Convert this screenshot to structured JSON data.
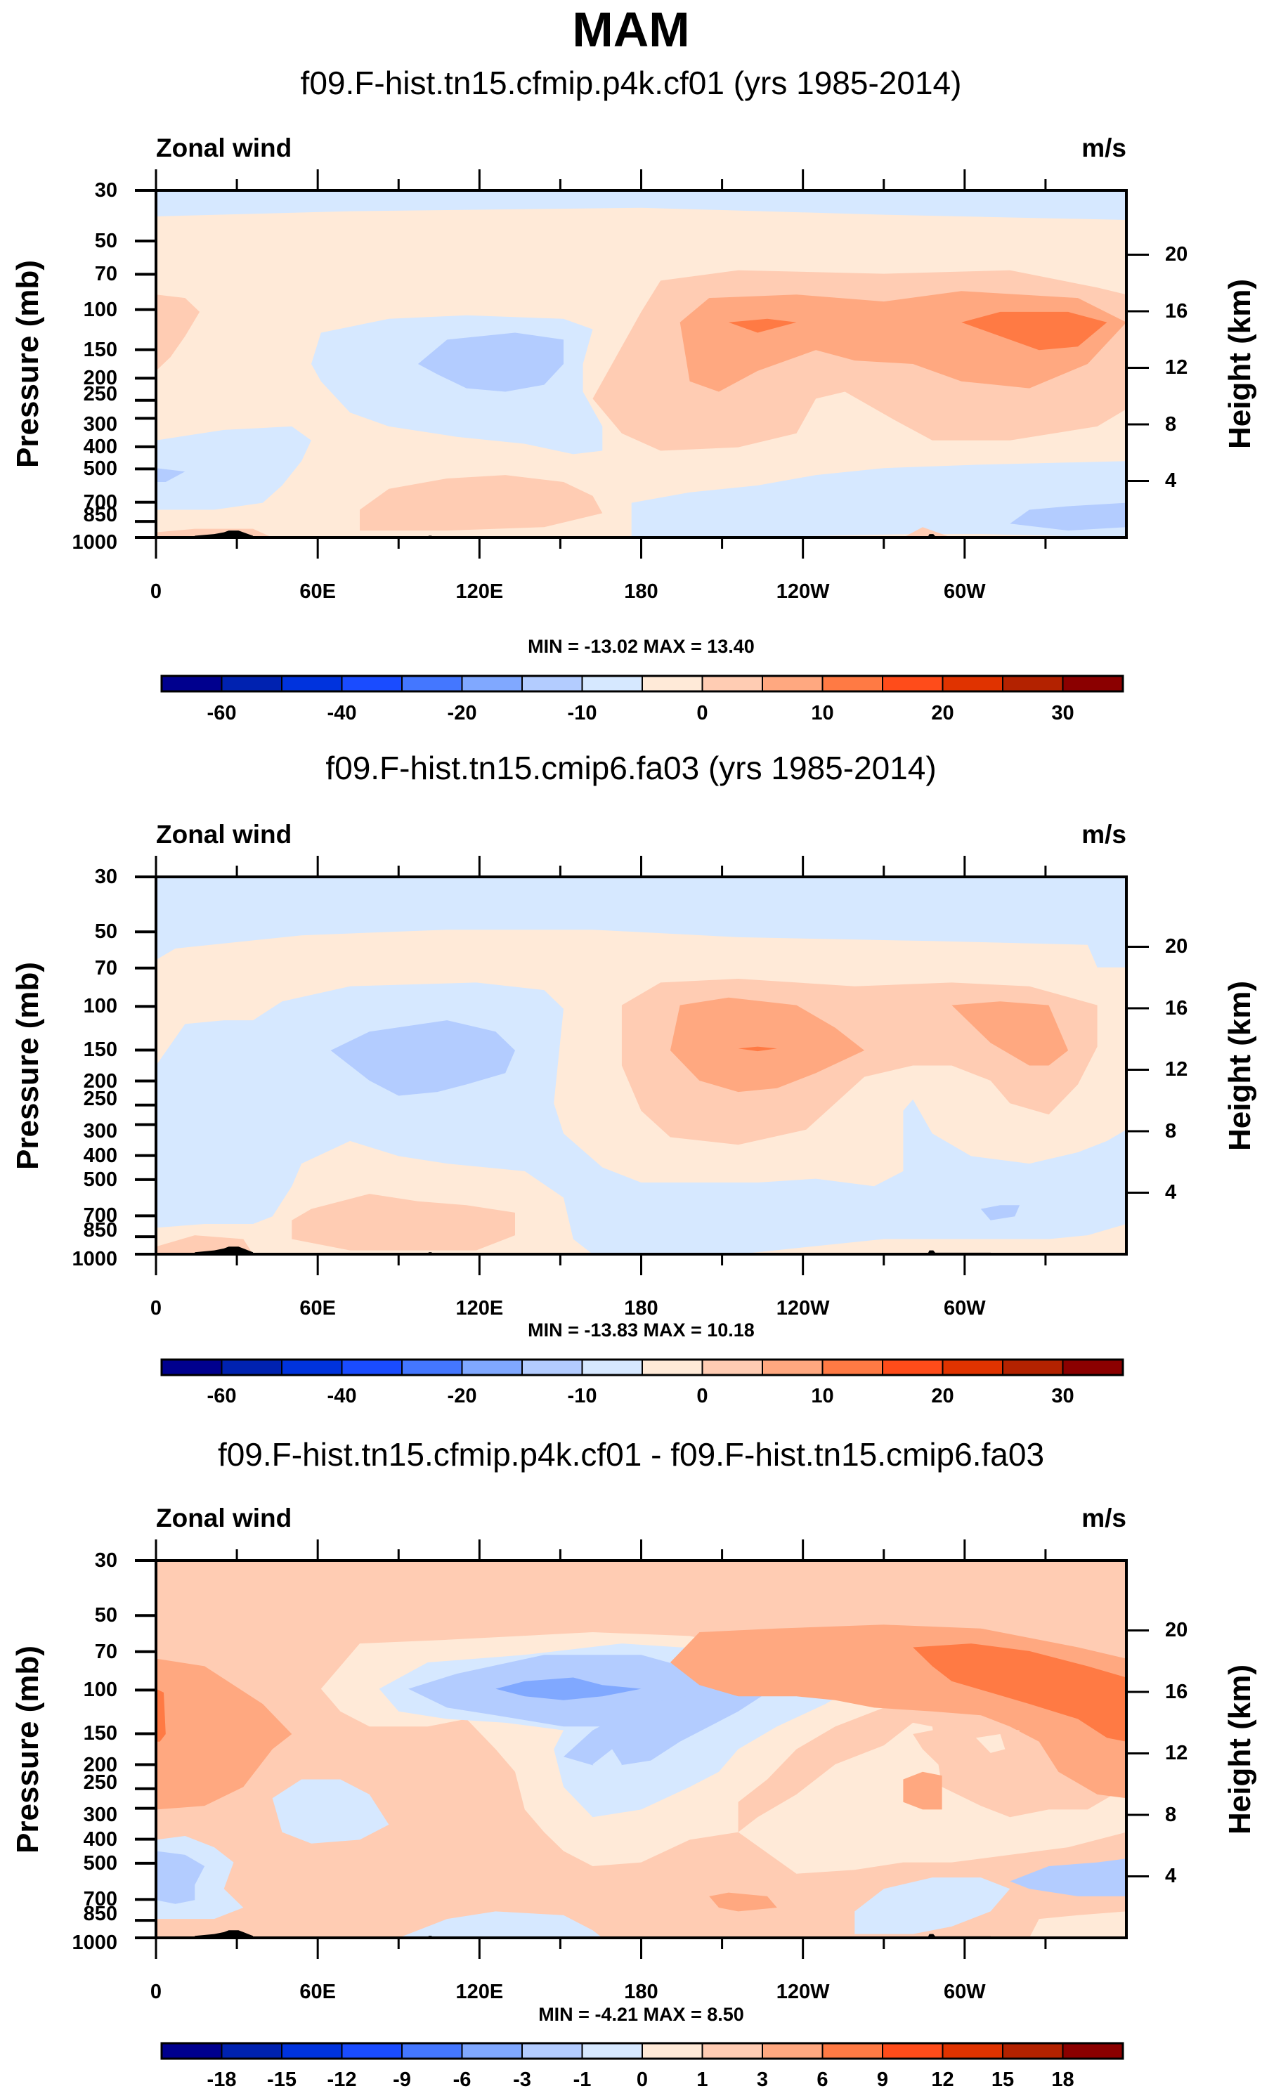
{
  "figure": {
    "title": "MAM"
  },
  "chart_data": [
    {
      "type": "heatmap",
      "title": "f09.F-hist.tn15.cfmip.p4k.cf01 (yrs 1985-2014)",
      "left_string": "Zonal wind",
      "right_string": "m/s",
      "ylabel": "Pressure (mb)",
      "ylabel_right": "Height (km)",
      "xlim": [
        0,
        360
      ],
      "ylim_mb": [
        1000,
        30
      ],
      "y_scale": "log",
      "x_ticks": [
        "0",
        "60E",
        "120E",
        "180",
        "120W",
        "60W"
      ],
      "y_ticks": [
        "30",
        "50",
        "70",
        "100",
        "150",
        "200",
        "250",
        "300",
        "400",
        "500",
        "700",
        "850",
        "1000"
      ],
      "y_ticks_right": [
        "20",
        "16",
        "12",
        "8",
        "4"
      ],
      "min": -13.02,
      "max": 13.4,
      "min_max_text": "MIN = -13.02  MAX =  13.40",
      "colorbar": {
        "levels": [
          -60,
          -50,
          -40,
          -30,
          -20,
          -15,
          -10,
          -5,
          0,
          5,
          10,
          15,
          20,
          25,
          30
        ],
        "labels": [
          "-60",
          "-40",
          "-20",
          "-10",
          "0",
          "10",
          "20",
          "30"
        ],
        "label_levels": [
          -60,
          -40,
          -20,
          -10,
          0,
          10,
          20,
          30
        ]
      },
      "features": [
        "weak easterlies (-5 to 0) near 30 mb across all longitudes",
        "westerly jet 10-15 m/s near 100 mb from 160W to 30W",
        "easterly core -10 to -5 m/s near 100-150 mb around 80E-130E",
        "easterlies -10 to -5 in lower troposphere near 90W-0"
      ]
    },
    {
      "type": "heatmap",
      "title": "f09.F-hist.tn15.cmip6.fa03 (yrs 1985-2014)",
      "left_string": "Zonal wind",
      "right_string": "m/s",
      "ylabel": "Pressure (mb)",
      "ylabel_right": "Height (km)",
      "xlim": [
        0,
        360
      ],
      "ylim_mb": [
        1000,
        30
      ],
      "y_scale": "log",
      "x_ticks": [
        "0",
        "60E",
        "120E",
        "180",
        "120W",
        "60W"
      ],
      "y_ticks": [
        "30",
        "50",
        "70",
        "100",
        "150",
        "200",
        "250",
        "300",
        "400",
        "500",
        "700",
        "850",
        "1000"
      ],
      "y_ticks_right": [
        "20",
        "16",
        "12",
        "8",
        "4"
      ],
      "min": -13.83,
      "max": 10.18,
      "min_max_text": "MIN = -13.83  MAX =  10.18",
      "colorbar": {
        "levels": [
          -60,
          -50,
          -40,
          -30,
          -20,
          -15,
          -10,
          -5,
          0,
          5,
          10,
          15,
          20,
          25,
          30
        ],
        "labels": [
          "-60",
          "-40",
          "-20",
          "-10",
          "0",
          "10",
          "20",
          "30"
        ],
        "label_levels": [
          -60,
          -40,
          -20,
          -10,
          0,
          10,
          20,
          30
        ]
      },
      "features": [
        "easterlies (-5 to 0) 30-60 mb everywhere",
        "westerly maxima 5-10 m/s near 150 mb at 160W and 60W",
        "easterly core -10 to -5 near 150 mb at 80E-120E"
      ]
    },
    {
      "type": "heatmap",
      "title": "f09.F-hist.tn15.cfmip.p4k.cf01 - f09.F-hist.tn15.cmip6.fa03",
      "left_string": "Zonal wind",
      "right_string": "m/s",
      "ylabel": "Pressure (mb)",
      "ylabel_right": "Height (km)",
      "xlim": [
        0,
        360
      ],
      "ylim_mb": [
        1000,
        30
      ],
      "y_scale": "log",
      "x_ticks": [
        "0",
        "60E",
        "120E",
        "180",
        "120W",
        "60W"
      ],
      "y_ticks": [
        "30",
        "50",
        "70",
        "100",
        "150",
        "200",
        "250",
        "300",
        "400",
        "500",
        "700",
        "850",
        "1000"
      ],
      "y_ticks_right": [
        "20",
        "16",
        "12",
        "8",
        "4"
      ],
      "min": -4.21,
      "max": 8.5,
      "min_max_text": "MIN =  -4.21  MAX =   8.50",
      "colorbar": {
        "levels": [
          -18,
          -15,
          -12,
          -9,
          -6,
          -3,
          -1,
          0,
          1,
          3,
          6,
          9,
          12,
          15,
          18
        ],
        "labels": [
          "-18",
          "-15",
          "-12",
          "-9",
          "-6",
          "-3",
          "-1",
          "0",
          "1",
          "3",
          "6",
          "9",
          "12",
          "15",
          "18"
        ],
        "label_levels": [
          -18,
          -15,
          -12,
          -9,
          -6,
          -3,
          -1,
          0,
          1,
          3,
          6,
          9,
          12,
          15,
          18
        ]
      },
      "features": [
        "positive difference 1-3 m/s over most of upper domain",
        "difference 6-9 m/s near 70-150 mb at 90W-0",
        "negative difference -6 to -3 near 100 mb at 60E-150E"
      ]
    }
  ],
  "palette": [
    "#00008e",
    "#0022b0",
    "#0033dd",
    "#1a4cff",
    "#4477ff",
    "#80a8ff",
    "#b3ccff",
    "#d6e8ff",
    "#ffead8",
    "#ffccb3",
    "#ffa880",
    "#ff7a44",
    "#ff4c1a",
    "#e03300",
    "#b32200",
    "#8b0000"
  ],
  "topography_color": "#000000"
}
